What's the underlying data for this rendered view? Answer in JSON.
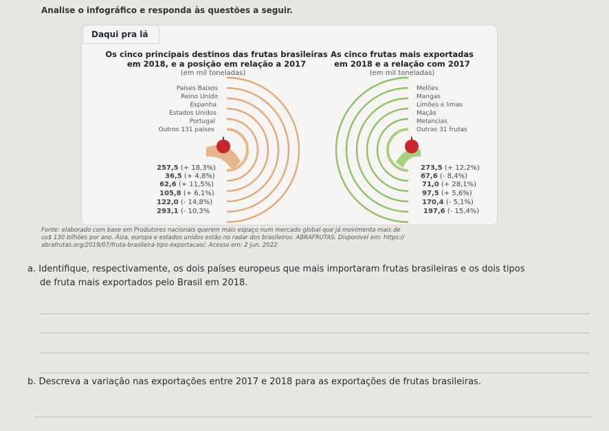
{
  "intro": "Analise o infográfico e responda às questões a seguir.",
  "tab_label": "Daqui pra lá",
  "left": {
    "title_line1": "Os cinco principais destinos das frutas brasileiras",
    "title_line2": "em 2018, e a posição em relação a 2017",
    "unit": "(em mil toneladas)",
    "labels": [
      "Países Baixos",
      "Reino Unido",
      "Espanha",
      "Estados Unidos",
      "Portugal",
      "Outros 131 países"
    ],
    "values": [
      {
        "v": "257,5",
        "d": "(+ 18,3%)"
      },
      {
        "v": "36,5",
        "d": "(+ 4,8%)"
      },
      {
        "v": "62,6",
        "d": "(+ 11,5%)"
      },
      {
        "v": "105,8",
        "d": "(+ 6,1%)"
      },
      {
        "v": "122,0",
        "d": "(- 14,8%)"
      },
      {
        "v": "293,1",
        "d": "(- 10,3%"
      }
    ]
  },
  "right": {
    "title_line1": "As cinco frutas mais exportadas",
    "title_line2": "em 2018 e a relação com 2017",
    "unit": "(em mil toneladas)",
    "labels": [
      "Melões",
      "Mangas",
      "Limões e limas",
      "Maçãs",
      "Melancias",
      "Outras 31 frutas"
    ],
    "values": [
      {
        "v": "273,5",
        "d": "(+ 12,2%)"
      },
      {
        "v": "67,6",
        "d": "(- 8,4%)"
      },
      {
        "v": "71,0",
        "d": "(+ 28,1%)"
      },
      {
        "v": "97,5",
        "d": "(+ 5,6%)"
      },
      {
        "v": "170,4",
        "d": "(- 5,1%)"
      },
      {
        "v": "197,6",
        "d": "(- 15,4%)"
      }
    ]
  },
  "colors": {
    "orange": "#e0a878",
    "green": "#8fbf6a",
    "apple": "#c8262c"
  },
  "source_line1": "Fonte: elaborado com base em Produtores nacionais querem mais espaço num mercado global que já movimenta mais de",
  "source_line2": "us$ 130 bilhões por ano. Ásia, europa e estados unidos estão no radar dos brasileiros. ABRAFRUTAS. Disponível em: https://",
  "source_line3": "abrafrutas.org/2019/07/fruta-brasileira-tipo-exportacao/. Acesso em: 2 jun. 2022.",
  "question_a_line1": "a. Identifique, respectivamente, os dois países europeus que mais importaram frutas brasileiras e os dois tipos",
  "question_a_line2": "de fruta mais exportados pelo Brasil em 2018.",
  "question_b": "b. Descreva a variação nas exportações entre 2017 e 2018 para as exportações de frutas brasileiras."
}
